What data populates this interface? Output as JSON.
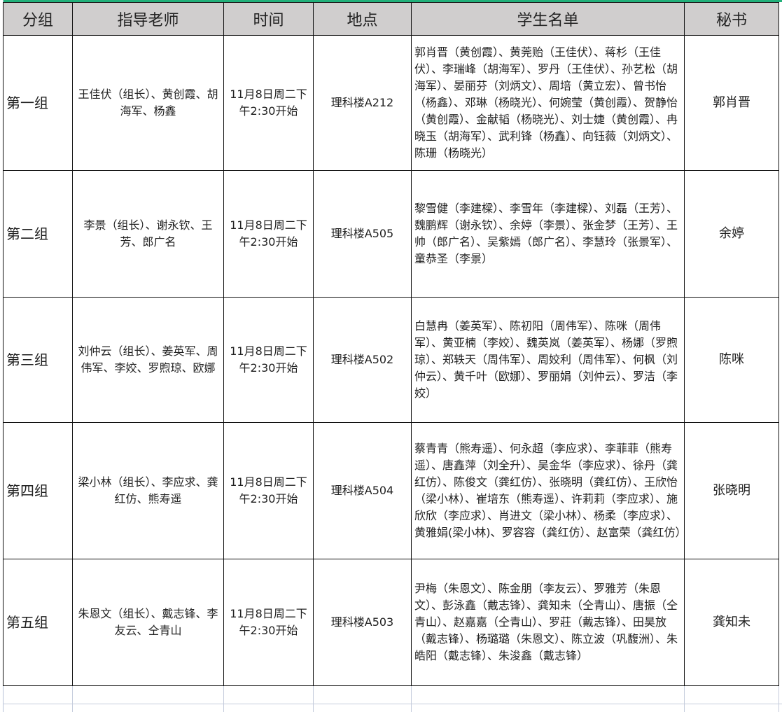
{
  "headers": [
    "分组",
    "指导老师",
    "时间",
    "地点",
    "学生名单",
    "秘书"
  ],
  "rows": [
    {
      "group": "第一组",
      "teachers": "王佳伏（组长）、黄创霞、胡海军、杨鑫",
      "time": "11月8日周二下午2:30开始",
      "place": "理科楼A212",
      "students": "郭肖晋（黄创霞）、黄莞贻（王佳伏）、蒋杉（王佳伏）、李瑞峰（胡海军）、罗丹（王佳伏）、孙艺松（胡海军）、晏丽芬（刘炳文）、周培（黄立宏）、曾书怡（杨鑫）、邓琳（杨晓光）、何婉莹（黄创霞）、贺静怡（黄创霞）、金献韬（杨晓光）、刘士婕（黄创霞）、冉晓玉（胡海军）、武利锋（杨鑫）、向钰薇（刘炳文）、陈珊（杨晓光）",
      "secretary": "郭肖晋"
    },
    {
      "group": "第二组",
      "teachers": "李景（组长）、谢永钦、王芳、郎广名",
      "time": "11月8日周二下午2:30开始",
      "place": "理科楼A505",
      "students": "黎雪健（李建樑）、李雪年（李建樑）、刘磊（王芳）、魏鹏辉（谢永钦）、余婷（李景）、张金梦（王芳）、王帅（郎广名）、吴紫嫣（郎广名）、李慧玲（张景军）、童恭圣（李景）",
      "secretary": "余婷"
    },
    {
      "group": "第三组",
      "teachers": "刘仲云（组长）、姜英军、周伟军、李姣、罗煦琼、欧娜",
      "time": "11月8日周二下午2:30开始",
      "place": "理科楼A502",
      "students": "白慧冉（姜英军）、陈初阳（周伟军）、陈咪（周伟军）、黄亚楠（李姣）、魏英岚（姜英军）、杨娜（罗煦琼）、郑轶天（周伟军）、周姣利（周伟军）、何枫（刘仲云）、黄千叶（欧娜）、罗丽娟（刘仲云）、罗洁（李姣）",
      "secretary": "陈咪"
    },
    {
      "group": "第四组",
      "teachers": "梁小林（组长）、李应求、龚红仿、熊寿遥",
      "time": "11月8日周二下午2:30开始",
      "place": "理科楼A504",
      "students": "蔡青青（熊寿遥）、何永超（李应求）、李菲菲（熊寿遥）、唐鑫萍（刘全升）、吴金华（李应求）、徐丹（龚红仿）、陈俊文（龚红仿）、张晓明（龚红仿）、王欣怡（梁小林）、崔培东（熊寿遥）、许莉莉（李应求）、施欣欣（李应求）、肖进文（梁小林）、杨柔（李应求）、黄雅娟(梁小林)、罗容容（龚红仿）、赵富荣（龚红仿）",
      "secretary": "张晓明"
    },
    {
      "group": "第五组",
      "teachers": "朱恩文（组长）、戴志锋、李友云、仝青山",
      "time": "11月8日周二下午2:30开始",
      "place": "理科楼A503",
      "students": "尹梅（朱恩文）、陈金朋（李友云）、罗雅芳（朱恩文）、彭泳鑫（戴志锋）、龚知未（仝青山）、唐振（仝青山）、赵嘉嘉（仝青山）、罗莊（戴志锋）、田昊放（戴志锋）、杨璐璐（朱恩文）、陈立波（巩馥洲）、朱皓阳（戴志锋）、朱浚鑫（戴志锋）",
      "secretary": "龚知未"
    }
  ],
  "colors": {
    "header_bg": "#d0cece",
    "top_accent": "#21b07a",
    "gridline": "#c5ccdc"
  }
}
